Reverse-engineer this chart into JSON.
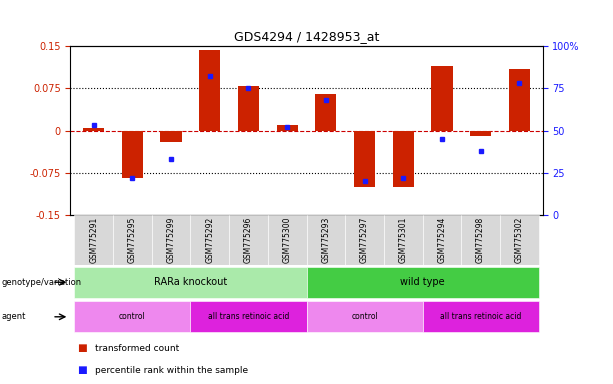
{
  "title": "GDS4294 / 1428953_at",
  "samples": [
    "GSM775291",
    "GSM775295",
    "GSM775299",
    "GSM775292",
    "GSM775296",
    "GSM775300",
    "GSM775293",
    "GSM775297",
    "GSM775301",
    "GSM775294",
    "GSM775298",
    "GSM775302"
  ],
  "red_values": [
    0.005,
    -0.085,
    -0.02,
    0.143,
    0.08,
    0.01,
    0.065,
    -0.1,
    -0.1,
    0.115,
    -0.01,
    0.11
  ],
  "blue_values_pct": [
    53,
    22,
    33,
    82,
    75,
    52,
    68,
    20,
    22,
    45,
    38,
    78
  ],
  "ylim_left": [
    -0.15,
    0.15
  ],
  "yticks_left": [
    -0.15,
    -0.075,
    0,
    0.075,
    0.15
  ],
  "yticks_right": [
    0,
    25,
    50,
    75,
    100
  ],
  "red_color": "#cc2200",
  "blue_color": "#1a1aff",
  "dashed_line_color": "#cc0000",
  "dotted_line_color": "#000000",
  "bar_width": 0.55,
  "genotype_labels": [
    "RARa knockout",
    "wild type"
  ],
  "genotype_colors_light": "#aaeaaa",
  "genotype_colors_dark": "#44cc44",
  "agent_labels": [
    "control",
    "all trans retinoic acid",
    "control",
    "all trans retinoic acid"
  ],
  "agent_color_light": "#ee88ee",
  "agent_color_dark": "#dd22dd",
  "legend_red": "transformed count",
  "legend_blue": "percentile rank within the sample",
  "tick_label_color_left": "#cc2200",
  "tick_label_color_right": "#1a1aff"
}
